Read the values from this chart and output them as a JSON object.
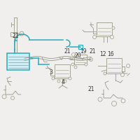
{
  "bg_color": "#f0efed",
  "line_color": "#999988",
  "highlight_color": "#2aabbb",
  "text_color": "#333333",
  "label_fontsize": 5.5
}
